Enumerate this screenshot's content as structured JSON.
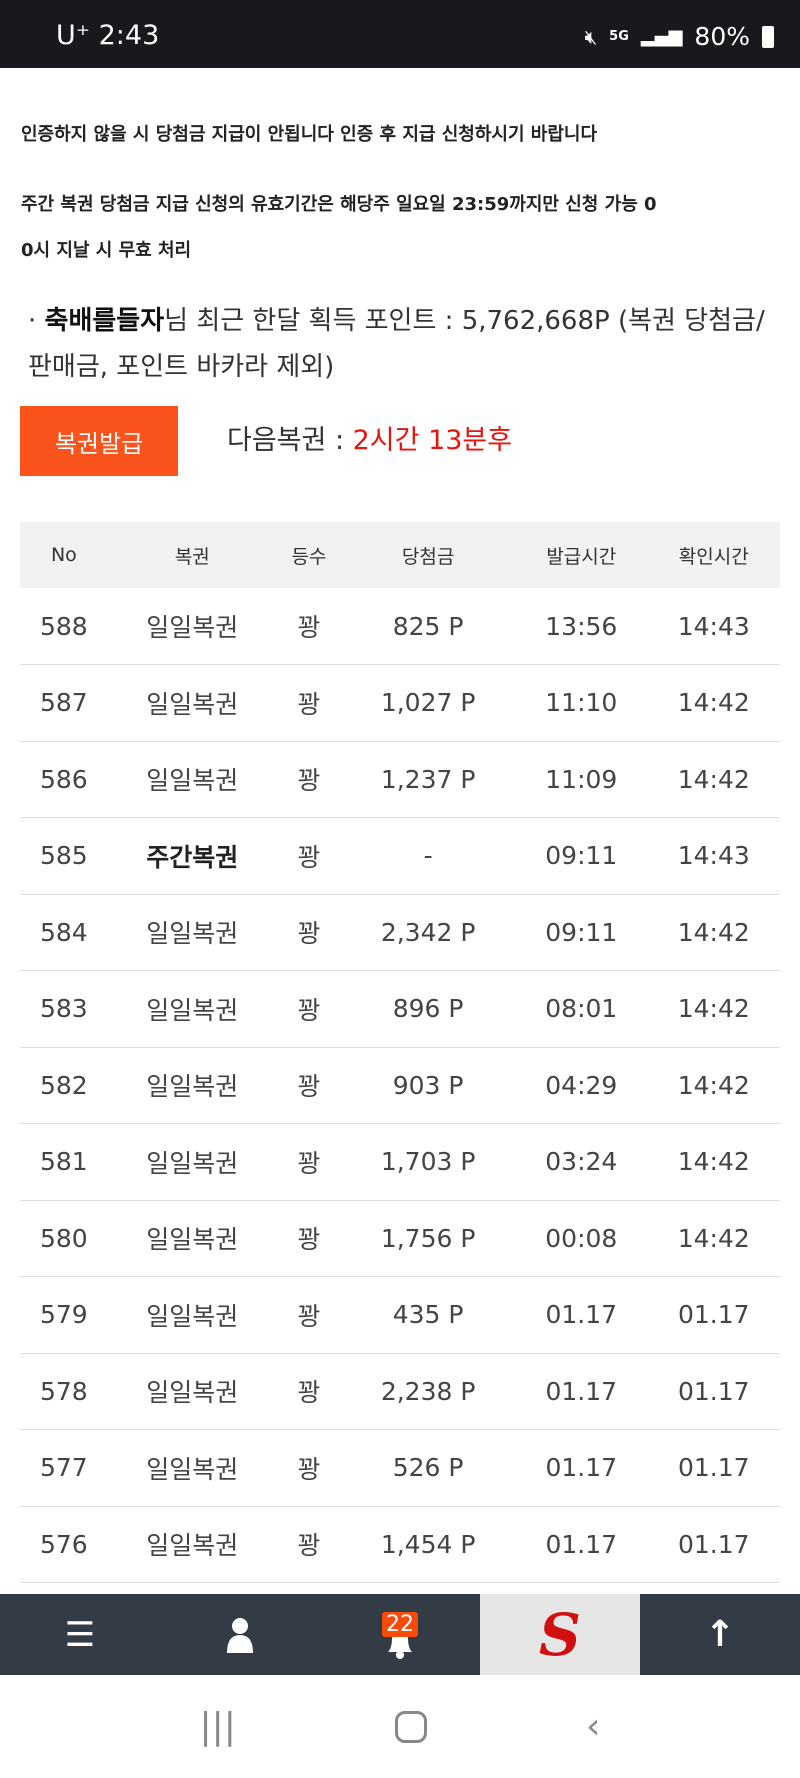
{
  "status_bar": {
    "carrier": "U⁺",
    "time": "2:43",
    "network": "5G",
    "battery": "80%"
  },
  "notices": [
    "인증하지 않을 시 당첨금 지급이 안됩니다 인증 후 지급 신청하시기 바랍니다",
    "주간 복권 당첨금 지급 신청의 유효기간은 해당주 일요일 23:59까지만 신청 가능 0",
    "0시 지날 시 무효 처리"
  ],
  "points": {
    "bullet": "·",
    "username": "축배를들자",
    "text": "님 최근 한달 획득 포인트 : 5,762,668P (복권 당첨금/판매금, 포인트 바카라 제외)"
  },
  "issue_button": "복권발급",
  "next": {
    "label": "다음복권 : ",
    "value": "2시간 13분후"
  },
  "table": {
    "headers": [
      "No",
      "복권",
      "등수",
      "당첨금",
      "발급시간",
      "확인시간"
    ],
    "rows": [
      [
        "588",
        "일일복권",
        "꽝",
        "825 P",
        "13:56",
        "14:43"
      ],
      [
        "587",
        "일일복권",
        "꽝",
        "1,027 P",
        "11:10",
        "14:42"
      ],
      [
        "586",
        "일일복권",
        "꽝",
        "1,237 P",
        "11:09",
        "14:42"
      ],
      [
        "585",
        "주간복권",
        "꽝",
        "-",
        "09:11",
        "14:43"
      ],
      [
        "584",
        "일일복권",
        "꽝",
        "2,342 P",
        "09:11",
        "14:42"
      ],
      [
        "583",
        "일일복권",
        "꽝",
        "896 P",
        "08:01",
        "14:42"
      ],
      [
        "582",
        "일일복권",
        "꽝",
        "903 P",
        "04:29",
        "14:42"
      ],
      [
        "581",
        "일일복권",
        "꽝",
        "1,703 P",
        "03:24",
        "14:42"
      ],
      [
        "580",
        "일일복권",
        "꽝",
        "1,756 P",
        "00:08",
        "14:42"
      ],
      [
        "579",
        "일일복권",
        "꽝",
        "435 P",
        "01.17",
        "01.17"
      ],
      [
        "578",
        "일일복권",
        "꽝",
        "2,238 P",
        "01.17",
        "01.17"
      ],
      [
        "577",
        "일일복권",
        "꽝",
        "526 P",
        "01.17",
        "01.17"
      ],
      [
        "576",
        "일일복권",
        "꽝",
        "1,454 P",
        "01.17",
        "01.17"
      ]
    ]
  },
  "bottom_nav": {
    "badge": "22",
    "items": [
      "menu-icon",
      "user-icon",
      "bell-icon",
      "site-logo",
      "arrow-up-icon"
    ]
  },
  "colors": {
    "accent": "#fa541c",
    "highlight": "#e8130c",
    "nav_bg": "#333c46"
  }
}
